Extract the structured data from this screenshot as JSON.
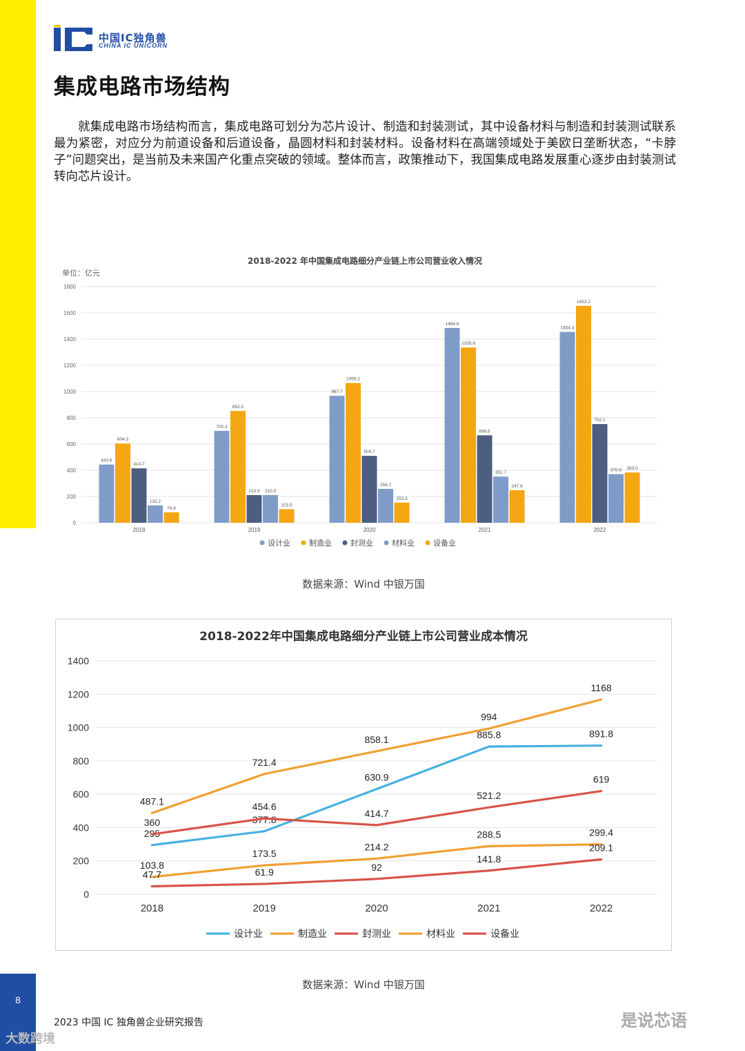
{
  "header": {
    "logo_mark": "IC",
    "logo_cn": "中国IC独角兽",
    "logo_en": "CHINA IC UNICORN"
  },
  "page_title": "集成电路市场结构",
  "body_paragraph": "就集成电路市场结构而言，集成电路可划分为芯片设计、制造和封装测试，其中设备材料与制造和封装测试联系最为紧密，对应分为前道设备和后道设备，晶圆材料和封装材料。设备材料在高端领域处于美欧日垄断状态，“卡脖子”问题突出，是当前及未来国产化重点突破的领域。整体而言，政策推动下，我国集成电路发展重心逐步由封装测试转向芯片设计。",
  "chart_data": [
    {
      "type": "bar",
      "title": "2018-2022 年中国集成电路细分产业链上市公司营业收入情况",
      "unit_label": "单位：亿元",
      "categories": [
        "2018",
        "2019",
        "2020",
        "2021",
        "2022"
      ],
      "ylim": [
        0,
        1800
      ],
      "yticks": [
        0,
        200,
        400,
        600,
        800,
        1000,
        1200,
        1400,
        1600,
        1800
      ],
      "grid": true,
      "legend_position": "bottom",
      "series": [
        {
          "name": "设计业",
          "color": "#7f9cc9",
          "values": [
            443.6,
            700.3,
            967.7,
            1484.6,
            1454.4
          ],
          "labels": [
            "443.6",
            "700.3",
            "967.7",
            "1484.6",
            "1454.4"
          ]
        },
        {
          "name": "制造业",
          "color": "#f5a613",
          "values": [
            604.3,
            852.0,
            1065.2,
            1335.6,
            1653.2
          ],
          "labels": [
            "604.3",
            "852.0",
            "1065.2",
            "1335.6",
            "1653.2"
          ]
        },
        {
          "name": "封测业",
          "color": "#4d5e80",
          "values": [
            414.7,
            210.9,
            509.7,
            666.6,
            752.1
          ],
          "labels": [
            "414.7",
            "210.9",
            "509.7",
            "666.6",
            "752.1"
          ]
        },
        {
          "name": "材料业",
          "color": "#7f9cc9",
          "values": [
            132.2,
            210.9,
            258.2,
            351.7,
            370.6
          ],
          "labels": [
            "132.2",
            "210.9",
            "258.2",
            "351.7",
            "370.6"
          ]
        },
        {
          "name": "设备业",
          "color": "#f5a613",
          "values": [
            79.6,
            103.5,
            153.3,
            247.9,
            383.0
          ],
          "labels": [
            "79.6",
            "103.5",
            "153.3",
            "247.9",
            "383.0"
          ]
        }
      ],
      "source": "数据来源：Wind 中银万国"
    },
    {
      "type": "line",
      "title": "2018-2022年中国集成电路细分产业链上市公司营业成本情况",
      "categories": [
        "2018",
        "2019",
        "2020",
        "2021",
        "2022"
      ],
      "ylim": [
        0,
        1400
      ],
      "yticks": [
        0,
        200,
        400,
        600,
        800,
        1000,
        1200,
        1400
      ],
      "grid": true,
      "legend_position": "bottom",
      "series": [
        {
          "name": "设计业",
          "color": "#45b0e0",
          "values": [
            295,
            377.8,
            630.9,
            885.8,
            891.8
          ],
          "labels": [
            "295",
            "377.8",
            "630.9",
            "885.8",
            "891.8"
          ]
        },
        {
          "name": "制造业",
          "color": "#f0a033",
          "values": [
            487.1,
            721.4,
            858.1,
            994,
            1168
          ],
          "labels": [
            "487.1",
            "721.4",
            "858.1",
            "994",
            "1168"
          ]
        },
        {
          "name": "封测业",
          "color": "#d9534a",
          "values": [
            360,
            454.6,
            414.7,
            521.2,
            619
          ],
          "labels": [
            "360",
            "454.6",
            "414.7",
            "521.2",
            "619"
          ]
        },
        {
          "name": "材料业",
          "color": "#f0a033",
          "values": [
            103.8,
            173.5,
            214.2,
            288.5,
            299.4
          ],
          "labels": [
            "103.8",
            "173.5",
            "214.2",
            "288.5",
            "299.4"
          ]
        },
        {
          "name": "设备业",
          "color": "#d9534a",
          "values": [
            47.7,
            61.9,
            92,
            141.8,
            209.1
          ],
          "labels": [
            "47.7",
            "61.9",
            "92",
            "141.8",
            "209.1"
          ]
        }
      ],
      "source": "数据来源：Wind 中银万国"
    }
  ],
  "footer": {
    "page_number": "8",
    "report_name": "2023 中国 IC 独角兽企业研究报告",
    "watermark_left": "大数跨境",
    "watermark_right": "是说芯语"
  }
}
